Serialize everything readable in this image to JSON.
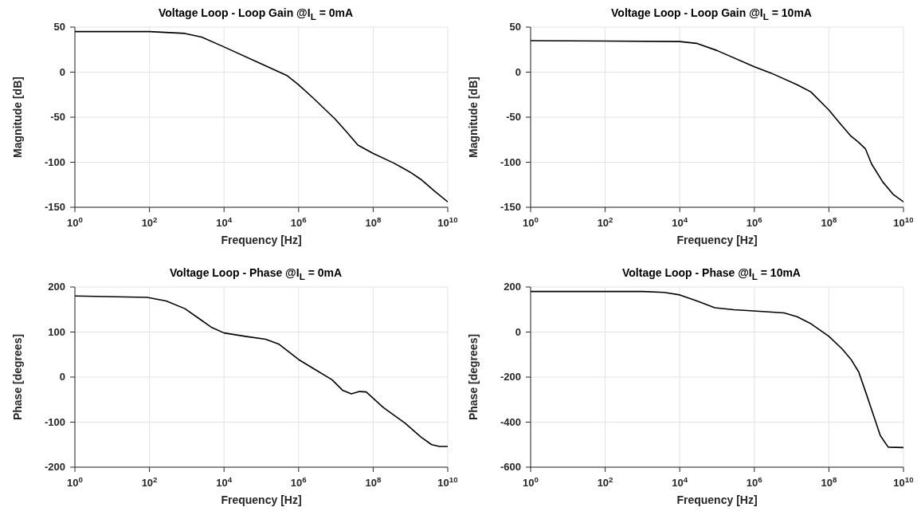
{
  "chart_data": [
    {
      "type": "line",
      "title": "Voltage Loop - Loop Gain @I$_{L}$ = 0mA",
      "xlabel": "Frequency [Hz]",
      "ylabel": "Magnitude [dB]",
      "log": "x",
      "grid": true,
      "xlim": [
        1,
        10000000000.0
      ],
      "ylim": [
        -150,
        50
      ],
      "xticks": [
        {
          "value": 1,
          "label": "10$^{0}$"
        },
        {
          "value": 100,
          "label": "10$^{2}$"
        },
        {
          "value": 10000,
          "label": "10$^{4}$"
        },
        {
          "value": 1000000,
          "label": "10$^{6}$"
        },
        {
          "value": 100000000,
          "label": "10$^{8}$"
        },
        {
          "value": 10000000000,
          "label": "10$^{10}$"
        }
      ],
      "yticks": [
        -150,
        -100,
        -50,
        0,
        50
      ],
      "x": [
        1,
        100,
        890,
        2500,
        10000,
        91000,
        500000,
        1000000,
        2500000,
        9500000,
        19000000,
        39000000,
        98000000,
        360000000,
        980000000,
        1900000000,
        4400000000,
        10000000000
      ],
      "series": [
        {
          "color": "#000000",
          "values": [
            45,
            45,
            43,
            39,
            28,
            10,
            -4,
            -14,
            -29,
            -52,
            -66,
            -81,
            -90,
            -101,
            -111,
            -119,
            -132,
            -144
          ]
        }
      ]
    },
    {
      "type": "line",
      "title": "Voltage Loop - Loop Gain @I$_{L}$ = 10mA",
      "xlabel": "Frequency [Hz]",
      "ylabel": "Magnitude [dB]",
      "log": "x",
      "grid": true,
      "xlim": [
        1,
        10000000000.0
      ],
      "ylim": [
        -150,
        50
      ],
      "xticks": [
        {
          "value": 1,
          "label": "10$^{0}$"
        },
        {
          "value": 100,
          "label": "10$^{2}$"
        },
        {
          "value": 10000,
          "label": "10$^{4}$"
        },
        {
          "value": 1000000,
          "label": "10$^{6}$"
        },
        {
          "value": 100000000,
          "label": "10$^{8}$"
        },
        {
          "value": 10000000000,
          "label": "10$^{10}$"
        }
      ],
      "yticks": [
        -150,
        -100,
        -50,
        0,
        50
      ],
      "x": [
        1,
        10000,
        28000,
        100000,
        1000000,
        2800000,
        14000000,
        33000000,
        100000000,
        200000000,
        390000000,
        630000000,
        950000000,
        1400000000,
        2800000000,
        5400000000,
        10000000000
      ],
      "series": [
        {
          "color": "#000000",
          "values": [
            35,
            34,
            32,
            24,
            6,
            -1,
            -14,
            -22,
            -42,
            -57,
            -71,
            -78,
            -85,
            -102,
            -122,
            -136,
            -144
          ]
        }
      ]
    },
    {
      "type": "line",
      "title": "Voltage Loop - Phase @I$_{L}$ = 0mA",
      "xlabel": "Frequency [Hz]",
      "ylabel": "Phase [degrees]",
      "log": "x",
      "grid": true,
      "xlim": [
        1,
        10000000000.0
      ],
      "ylim": [
        -200,
        200
      ],
      "xticks": [
        {
          "value": 1,
          "label": "10$^{0}$"
        },
        {
          "value": 100,
          "label": "10$^{2}$"
        },
        {
          "value": 10000,
          "label": "10$^{4}$"
        },
        {
          "value": 1000000,
          "label": "10$^{6}$"
        },
        {
          "value": 100000000,
          "label": "10$^{8}$"
        },
        {
          "value": 10000000000,
          "label": "10$^{10}$"
        }
      ],
      "yticks": [
        -200,
        -100,
        0,
        100,
        200
      ],
      "x": [
        1,
        87,
        280,
        890,
        2400,
        4700,
        10000,
        40000,
        130000,
        300000,
        1000000,
        2500000,
        7900000,
        15000000,
        26000000,
        43000000,
        65000000,
        190000000,
        710000000,
        1900000000,
        3700000000,
        6000000000,
        10000000000
      ],
      "series": [
        {
          "color": "#000000",
          "values": [
            180,
            177,
            169,
            152,
            127,
            110,
            98,
            90,
            84,
            73,
            39,
            19,
            -6,
            -29,
            -37,
            -32,
            -33,
            -68,
            -102,
            -133,
            -150,
            -154,
            -154
          ]
        }
      ]
    },
    {
      "type": "line",
      "title": "Voltage Loop - Phase @I$_{L}$ = 10mA",
      "xlabel": "Frequency [Hz]",
      "ylabel": "Phase [degrees]",
      "log": "x",
      "grid": true,
      "xlim": [
        1,
        10000000000.0
      ],
      "ylim": [
        -600,
        200
      ],
      "xticks": [
        {
          "value": 1,
          "label": "10$^{0}$"
        },
        {
          "value": 100,
          "label": "10$^{2}$"
        },
        {
          "value": 10000,
          "label": "10$^{4}$"
        },
        {
          "value": 1000000,
          "label": "10$^{6}$"
        },
        {
          "value": 100000000,
          "label": "10$^{8}$"
        },
        {
          "value": 10000000000,
          "label": "10$^{10}$"
        }
      ],
      "yticks": [
        -600,
        -400,
        -200,
        0,
        200
      ],
      "x": [
        1,
        1000,
        3800,
        10000,
        28000,
        87000,
        280000,
        950000,
        6300000,
        14000000,
        33000000,
        100000000,
        230000000,
        390000000,
        630000000,
        1000000000,
        2400000000,
        3900000000,
        10000000000
      ],
      "series": [
        {
          "color": "#000000",
          "values": [
            180,
            180,
            176,
            165,
            139,
            108,
            99,
            94,
            85,
            68,
            37,
            -19,
            -76,
            -121,
            -177,
            -273,
            -460,
            -511,
            -513
          ]
        }
      ]
    }
  ]
}
